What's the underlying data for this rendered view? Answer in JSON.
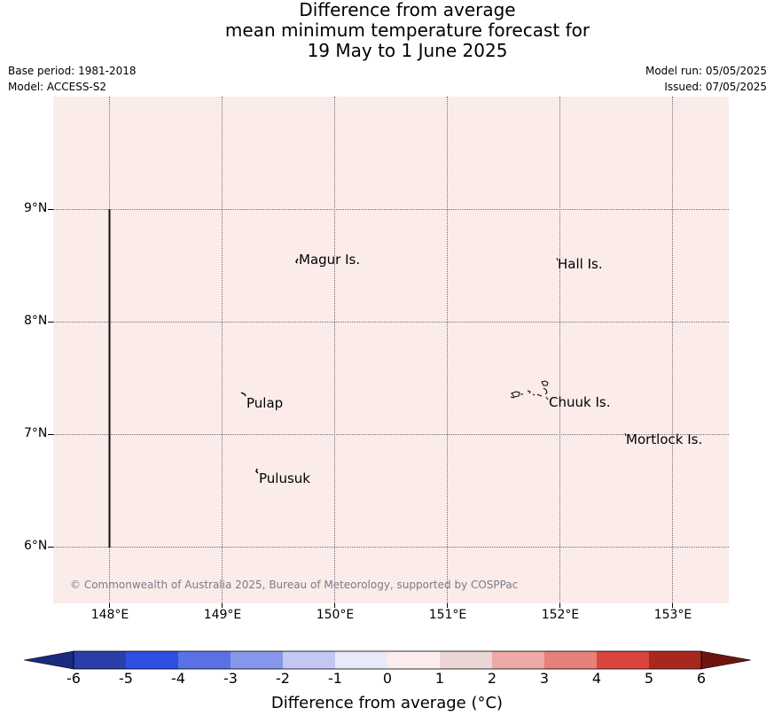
{
  "title": {
    "line1": "Difference from average",
    "line2": "mean minimum temperature forecast for",
    "line3": "19 May to 1 June 2025"
  },
  "meta": {
    "base_period": "Base period: 1981-2018",
    "model": "Model: ACCESS-S2",
    "model_run": "Model run: 05/05/2025",
    "issued": "Issued: 07/05/2025"
  },
  "map": {
    "fill_color": "#fbecea",
    "fill_anomaly_category": "0 to 1",
    "lon_ticks": [
      "148°E",
      "149°E",
      "150°E",
      "151°E",
      "152°E",
      "153°E"
    ],
    "lat_ticks": [
      "9°N",
      "8°N",
      "7°N",
      "6°N"
    ],
    "places": [
      {
        "name": "Magur Is.",
        "lon": 149.7,
        "lat": 8.56
      },
      {
        "name": "Hall Is.",
        "lon": 151.99,
        "lat": 8.52
      },
      {
        "name": "Pulap",
        "lon": 149.2,
        "lat": 7.3
      },
      {
        "name": "Chuuk Is.",
        "lon": 151.85,
        "lat": 7.32
      },
      {
        "name": "Mortlock Is.",
        "lon": 152.6,
        "lat": 6.97
      },
      {
        "name": "Pulusuk",
        "lon": 149.32,
        "lat": 6.64
      }
    ],
    "copyright": "© Commonwealth of Australia 2025, Bureau of Meteorology, supported by COSPPac"
  },
  "colorbar": {
    "title": "Difference from average (°C)",
    "labels": [
      "-6",
      "-5",
      "-4",
      "-3",
      "-2",
      "-1",
      "0",
      "1",
      "2",
      "3",
      "4",
      "5",
      "6"
    ],
    "colors": [
      "#2a3fa8",
      "#2f4ee4",
      "#5a72e6",
      "#8797ec",
      "#c2c8f2",
      "#e8eafa",
      "#fceeed",
      "#ecd5d5",
      "#eda9a4",
      "#e6807a",
      "#d9453c",
      "#a8271f"
    ],
    "under_color": "#1a2a80",
    "over_color": "#6e1510"
  }
}
